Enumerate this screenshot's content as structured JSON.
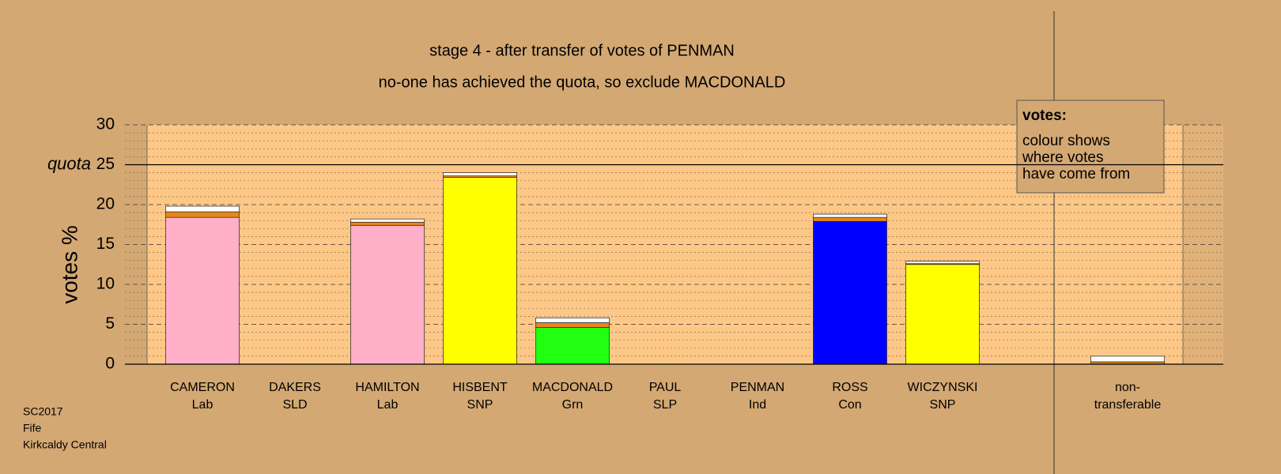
{
  "chart_data": {
    "type": "bar",
    "stacked": true,
    "title": "stage 4 - after transfer of votes of PENMAN",
    "subtitle": "no-one has achieved the quota, so exclude MACDONALD",
    "ylabel": "votes %",
    "ylim": [
      0,
      30
    ],
    "yticks": [
      0,
      5,
      10,
      15,
      20,
      25,
      30
    ],
    "minor_yticks": [
      1,
      2,
      3,
      4,
      6,
      7,
      8,
      9,
      11,
      12,
      13,
      14,
      16,
      17,
      18,
      19,
      21,
      22,
      23,
      24,
      26,
      27,
      28,
      29
    ],
    "grid": true,
    "quota": 25,
    "quota_label": "quota",
    "categories": [
      [
        "CAMERON",
        "Lab"
      ],
      [
        "DAKERS",
        "SLD"
      ],
      [
        "HAMILTON",
        "Lab"
      ],
      [
        "HISBENT",
        "SNP"
      ],
      [
        "MACDONALD",
        "Grn"
      ],
      [
        "PAUL",
        "SLP"
      ],
      [
        "PENMAN",
        "Ind"
      ],
      [
        "ROSS",
        "Con"
      ],
      [
        "WICZYNSKI",
        "SNP"
      ],
      null,
      [
        "non-",
        "transferable"
      ]
    ],
    "series": [
      {
        "colors": [
          "#ffb0c8",
          "#ffd700",
          "#ffb0c8",
          "#ffff00",
          "#22ff11",
          "#ff3333",
          "#bbbbbb",
          "#0000ff",
          "#ffff00",
          null,
          null
        ],
        "values": [
          18.4,
          0,
          17.4,
          23.4,
          4.6,
          0,
          0,
          17.9,
          12.5,
          null,
          null
        ]
      },
      {
        "color": "#e8861a",
        "values": [
          0.7,
          0,
          0.4,
          0.2,
          0.6,
          0,
          0,
          0.5,
          0.1,
          null,
          0.3
        ]
      },
      {
        "color": "#ffffff",
        "values": [
          0.7,
          0,
          0.4,
          0.4,
          0.6,
          0,
          0,
          0.4,
          0.3,
          null,
          0.7
        ]
      }
    ],
    "annotation": {
      "title": "votes:",
      "lines": [
        "colour shows",
        "where votes",
        "have come from"
      ]
    },
    "footnote": [
      "SC2017",
      "Fife",
      "Kirkcaldy Central"
    ]
  }
}
